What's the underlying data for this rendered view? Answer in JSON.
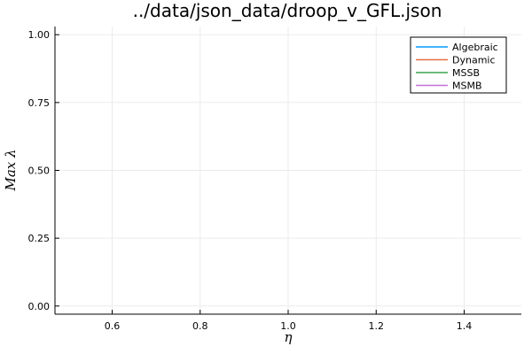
{
  "chart_data": {
    "type": "line",
    "title": "../data/json_data/droop_v_GFL.json",
    "xlabel": "η",
    "ylabel": "Max λ",
    "xlim": [
      0.47,
      1.53
    ],
    "ylim": [
      -0.03,
      1.03
    ],
    "x_ticks": [
      0.6,
      0.8,
      1.0,
      1.2,
      1.4
    ],
    "x_tick_labels": [
      "0.6",
      "0.8",
      "1.0",
      "1.2",
      "1.4"
    ],
    "y_ticks": [
      0.0,
      0.25,
      0.5,
      0.75,
      1.0
    ],
    "y_tick_labels": [
      "0.00",
      "0.25",
      "0.50",
      "0.75",
      "1.00"
    ],
    "grid": true,
    "legend_position": "top-right",
    "series": [
      {
        "name": "Algebraic",
        "color": "#009AFA",
        "x": [],
        "y": []
      },
      {
        "name": "Dynamic",
        "color": "#E36F47",
        "x": [],
        "y": []
      },
      {
        "name": "MSSB",
        "color": "#3EA44E",
        "x": [],
        "y": []
      },
      {
        "name": "MSMB",
        "color": "#C371D2",
        "x": [],
        "y": []
      }
    ]
  }
}
